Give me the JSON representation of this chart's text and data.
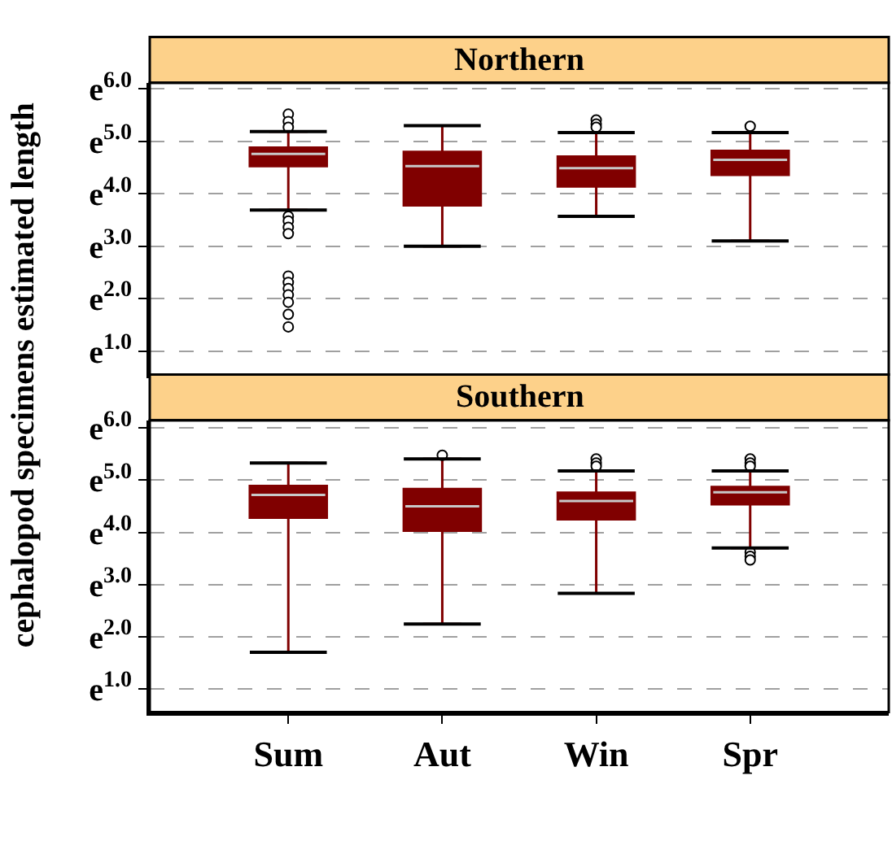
{
  "chart_data": [
    {
      "type": "box",
      "title": "Northern",
      "ylabel": "cephalopod specimens estimated length",
      "categories": [
        null,
        null,
        null,
        null
      ],
      "tick_labels": "y",
      "color": "#800000",
      "ylim": [
        0.55,
        6.12
      ],
      "yticks": [
        {
          "value": 1.0,
          "label": "e$^{1.0}$"
        },
        {
          "value": 2.0,
          "label": "e$^{2.0}$"
        },
        {
          "value": 3.0,
          "label": "e$^{3.0}$"
        },
        {
          "value": 4.0,
          "label": "e$^{4.0}$"
        },
        {
          "value": 5.0,
          "label": "e$^{5.0}$"
        },
        {
          "value": 6.0,
          "label": "e$^{6.0}$"
        }
      ],
      "grid": "y",
      "boxes": [
        {
          "low": 3.69,
          "q1": 4.53,
          "median": 4.76,
          "q3": 4.88,
          "high": 5.19,
          "outliers": [
            5.52,
            5.38,
            5.27,
            3.57,
            3.48,
            3.36,
            3.24,
            2.43,
            2.31,
            2.19,
            2.07,
            1.93,
            1.7,
            1.46
          ]
        },
        {
          "low": 3.0,
          "q1": 3.78,
          "median": 4.53,
          "q3": 4.8,
          "high": 5.3
        },
        {
          "low": 3.57,
          "q1": 4.14,
          "median": 4.49,
          "q3": 4.71,
          "high": 5.17,
          "outliers": [
            5.41,
            5.33,
            5.27
          ]
        },
        {
          "low": 3.1,
          "q1": 4.36,
          "median": 4.65,
          "q3": 4.82,
          "high": 5.17,
          "outliers": [
            5.29
          ]
        }
      ]
    },
    {
      "type": "box",
      "title": "Southern",
      "categories": [
        "Sum",
        "Aut",
        "Win",
        "Spr"
      ],
      "color": "#800000",
      "ylim": [
        0.55,
        6.15
      ],
      "yticks": [
        {
          "value": 1.0,
          "label": "e$^{1.0}$"
        },
        {
          "value": 2.0,
          "label": "e$^{2.0}$"
        },
        {
          "value": 3.0,
          "label": "e$^{3.0}$"
        },
        {
          "value": 4.0,
          "label": "e$^{4.0}$"
        },
        {
          "value": 5.0,
          "label": "e$^{5.0}$"
        },
        {
          "value": 6.0,
          "label": "e$^{6.0}$"
        }
      ],
      "grid": "y",
      "boxes": [
        {
          "low": 1.7,
          "q1": 4.28,
          "median": 4.72,
          "q3": 4.89,
          "high": 5.33
        },
        {
          "low": 2.24,
          "q1": 4.03,
          "median": 4.5,
          "q3": 4.83,
          "high": 5.41,
          "outliers": [
            5.48
          ]
        },
        {
          "low": 2.83,
          "q1": 4.25,
          "median": 4.6,
          "q3": 4.76,
          "high": 5.18,
          "outliers": [
            5.41,
            5.33,
            5.27
          ]
        },
        {
          "low": 3.7,
          "q1": 4.54,
          "median": 4.77,
          "q3": 4.87,
          "high": 5.18,
          "outliers": [
            5.41,
            5.33,
            5.27,
            3.62,
            3.54,
            3.47
          ]
        }
      ]
    }
  ]
}
